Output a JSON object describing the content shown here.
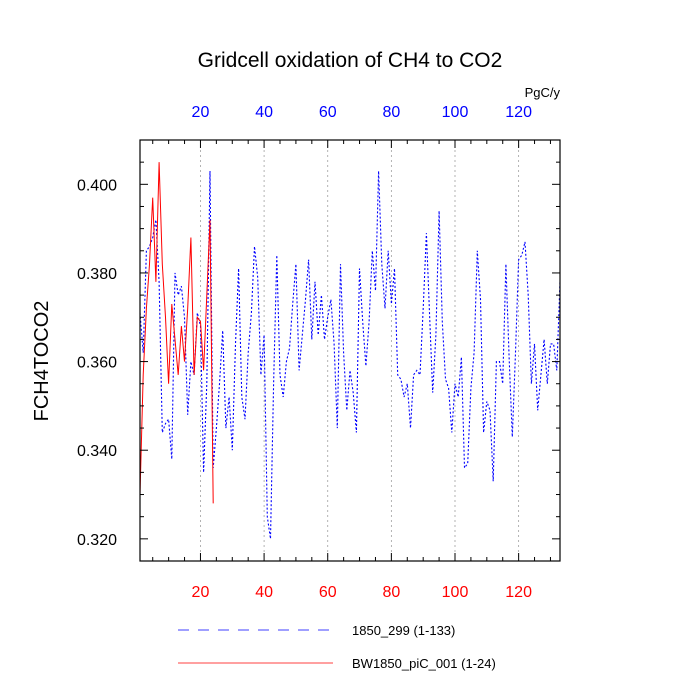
{
  "chart_data": {
    "type": "line",
    "title": "Gridcell oxidation of CH4 to CO2",
    "ylabel": "FCH4TOCO2",
    "units": "PgC/y",
    "xlim": [
      1,
      133
    ],
    "ylim": [
      0.315,
      0.41
    ],
    "xticks": [
      20,
      40,
      60,
      80,
      100,
      120
    ],
    "yticks": [
      0.32,
      0.34,
      0.36,
      0.38,
      0.4
    ],
    "ytick_labels": [
      "0.320",
      "0.340",
      "0.360",
      "0.380",
      "0.400"
    ],
    "top_axis_color": "#0000ff",
    "bottom_axis_color": "#ff0000",
    "series": [
      {
        "name": "1850_299 (1-133)",
        "color": "#0000ff",
        "dash": "dashed",
        "x": [
          1,
          2,
          3,
          4,
          5,
          6,
          7,
          8,
          9,
          10,
          11,
          12,
          13,
          14,
          15,
          16,
          17,
          18,
          19,
          20,
          21,
          22,
          23,
          24,
          25,
          26,
          27,
          28,
          29,
          30,
          31,
          32,
          33,
          34,
          35,
          36,
          37,
          38,
          39,
          40,
          41,
          42,
          43,
          44,
          45,
          46,
          47,
          48,
          49,
          50,
          51,
          52,
          53,
          54,
          55,
          56,
          57,
          58,
          59,
          60,
          61,
          62,
          63,
          64,
          65,
          66,
          67,
          68,
          69,
          70,
          71,
          72,
          73,
          74,
          75,
          76,
          77,
          78,
          79,
          80,
          81,
          82,
          83,
          84,
          85,
          86,
          87,
          88,
          89,
          90,
          91,
          92,
          93,
          94,
          95,
          96,
          97,
          98,
          99,
          100,
          101,
          102,
          103,
          104,
          105,
          106,
          107,
          108,
          109,
          110,
          111,
          112,
          113,
          114,
          115,
          116,
          117,
          118,
          119,
          120,
          121,
          122,
          123,
          124,
          125,
          126,
          127,
          128,
          129,
          130,
          131,
          132,
          133
        ],
        "values": [
          0.371,
          0.362,
          0.385,
          0.386,
          0.388,
          0.392,
          0.378,
          0.344,
          0.346,
          0.347,
          0.338,
          0.38,
          0.375,
          0.377,
          0.37,
          0.348,
          0.36,
          0.357,
          0.371,
          0.368,
          0.335,
          0.355,
          0.403,
          0.336,
          0.345,
          0.355,
          0.367,
          0.345,
          0.352,
          0.34,
          0.364,
          0.381,
          0.352,
          0.347,
          0.362,
          0.371,
          0.386,
          0.379,
          0.357,
          0.366,
          0.325,
          0.32,
          0.355,
          0.384,
          0.357,
          0.352,
          0.36,
          0.363,
          0.373,
          0.382,
          0.358,
          0.366,
          0.374,
          0.383,
          0.365,
          0.378,
          0.366,
          0.375,
          0.365,
          0.37,
          0.374,
          0.364,
          0.345,
          0.382,
          0.362,
          0.349,
          0.358,
          0.353,
          0.344,
          0.381,
          0.369,
          0.359,
          0.369,
          0.385,
          0.376,
          0.403,
          0.382,
          0.372,
          0.385,
          0.373,
          0.381,
          0.357,
          0.356,
          0.352,
          0.355,
          0.345,
          0.357,
          0.358,
          0.357,
          0.372,
          0.389,
          0.371,
          0.353,
          0.366,
          0.394,
          0.369,
          0.356,
          0.354,
          0.344,
          0.355,
          0.352,
          0.361,
          0.336,
          0.337,
          0.354,
          0.362,
          0.385,
          0.374,
          0.344,
          0.351,
          0.349,
          0.333,
          0.36,
          0.36,
          0.355,
          0.382,
          0.361,
          0.343,
          0.362,
          0.383,
          0.384,
          0.387,
          0.375,
          0.355,
          0.364,
          0.349,
          0.357,
          0.365,
          0.355,
          0.364,
          0.364,
          0.358,
          0.378
        ]
      },
      {
        "name": "BW1850_piC_001 (1-24)",
        "color": "#ff0000",
        "dash": "solid",
        "x": [
          1,
          2,
          3,
          4,
          5,
          6,
          7,
          8,
          9,
          10,
          11,
          12,
          13,
          14,
          15,
          16,
          17,
          18,
          19,
          20,
          21,
          22,
          23,
          24
        ],
        "values": [
          0.33,
          0.357,
          0.372,
          0.382,
          0.397,
          0.378,
          0.405,
          0.382,
          0.37,
          0.355,
          0.373,
          0.365,
          0.357,
          0.368,
          0.36,
          0.372,
          0.388,
          0.357,
          0.37,
          0.369,
          0.358,
          0.375,
          0.392,
          0.328
        ]
      }
    ],
    "legend": [
      {
        "label": "1850_299 (1-133)",
        "color": "#0000ff",
        "dash": "dashed"
      },
      {
        "label": "BW1850_piC_001 (1-24)",
        "color": "#ff0000",
        "dash": "solid"
      }
    ],
    "grid": "x-dotted"
  }
}
